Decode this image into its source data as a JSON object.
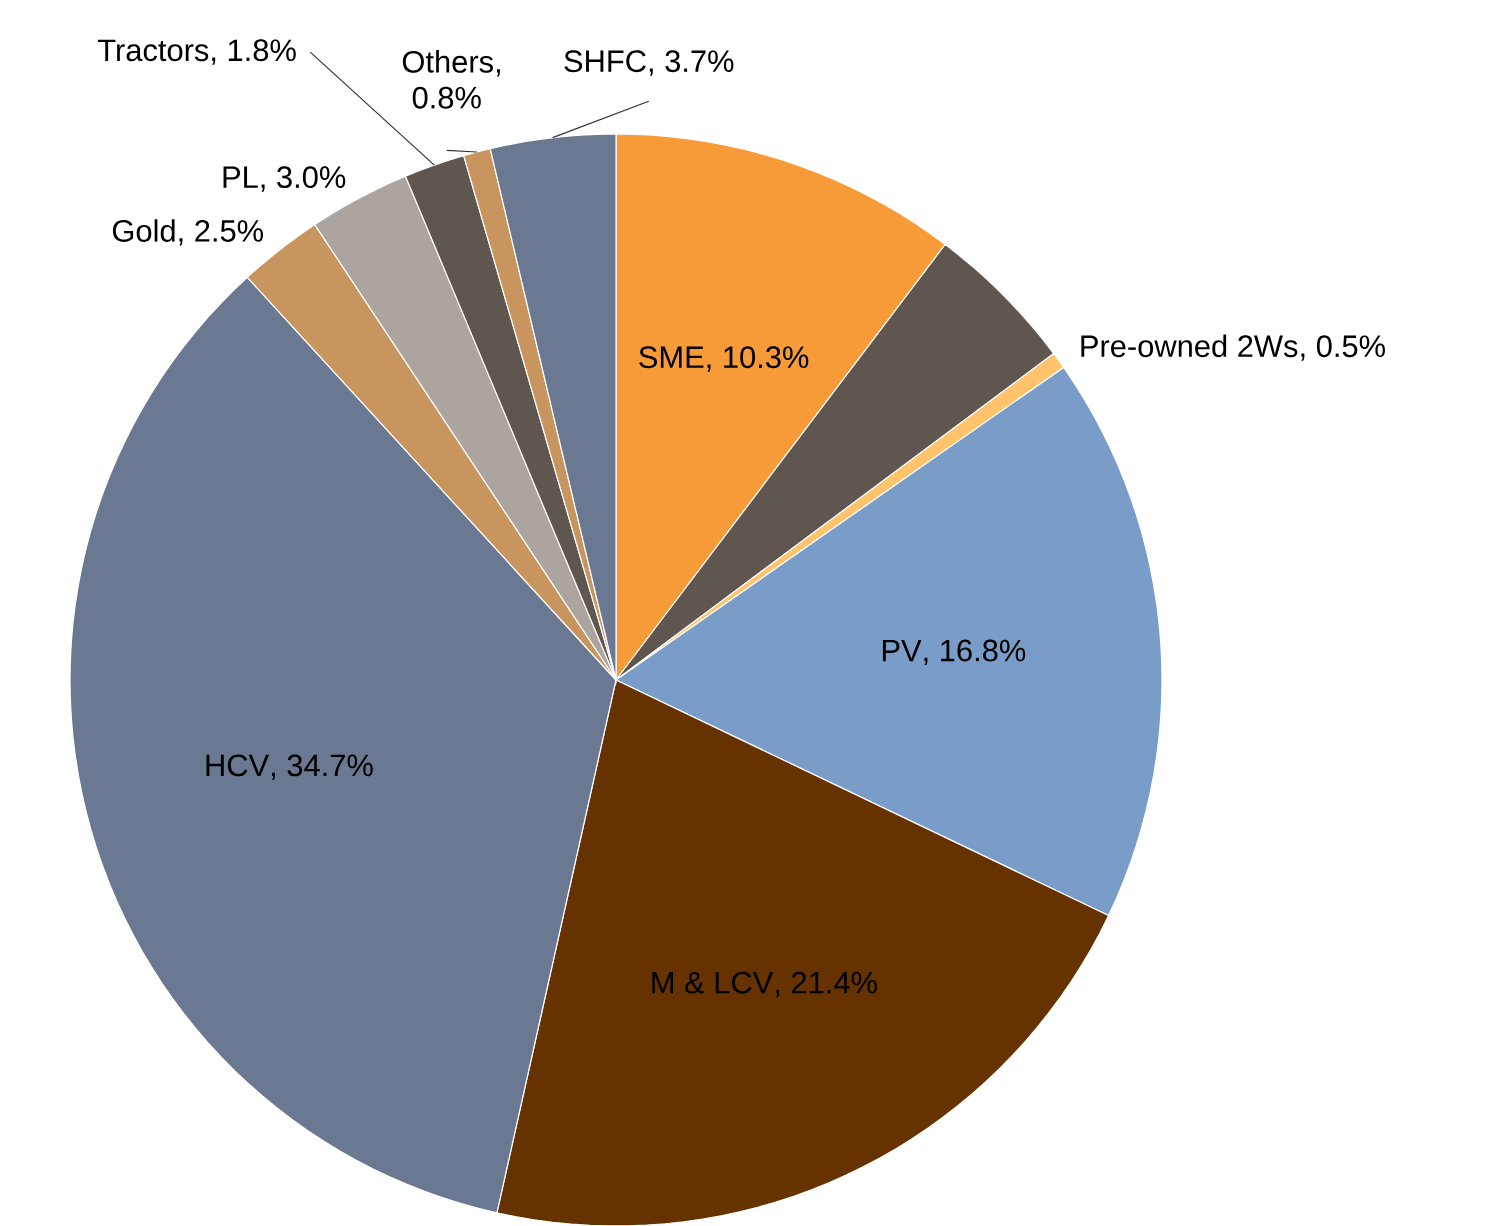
{
  "chart_data": {
    "type": "pie",
    "categories": [
      "SME",
      null,
      "Pre-owned 2Ws",
      "PV",
      "M & LCV",
      "HCV",
      "Gold",
      "PL",
      "Tractors",
      "Others",
      "SHFC"
    ],
    "values": [
      10.3,
      4.5,
      0.5,
      16.8,
      21.4,
      34.7,
      2.5,
      3.0,
      1.8,
      0.8,
      3.7
    ],
    "value_labels": [
      ", 10.3%",
      null,
      ", 0.5%",
      ", 16.8%",
      ", 21.4%",
      ", 34.7%",
      ", 2.5%",
      ", 3.0%",
      ", 1.8%",
      ", 0.8%",
      ", 3.7%"
    ],
    "colors": [
      "#f79a38",
      "#5f5650",
      "#ffc36b",
      "#7a9cc8",
      "#663300",
      "#6a7891",
      "#c9955e",
      "#aca59f",
      "#5f5650",
      "#c9955e",
      "#6a7891"
    ]
  }
}
